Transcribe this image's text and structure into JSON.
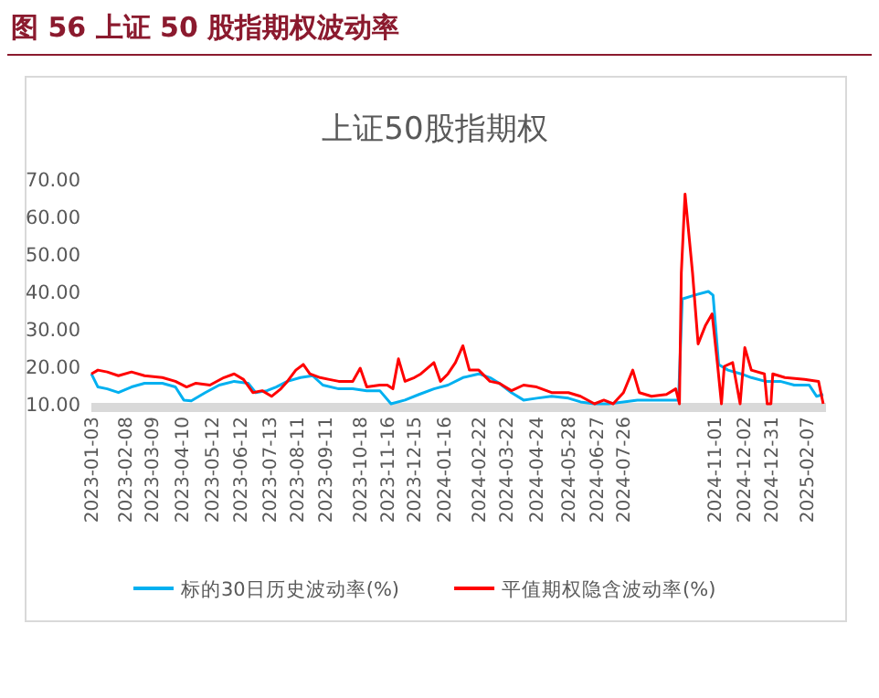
{
  "chart_data": {
    "type": "line",
    "title": "上证50股指期权",
    "annotations": [
      "图 56   上证 50 股指期权波动率"
    ],
    "xlim": [
      "2023-01-03",
      "2025-02-28"
    ],
    "xticks": [
      "2023-01-03",
      "2023-02-08",
      "2023-03-09",
      "2023-04-10",
      "2023-05-12",
      "2023-06-12",
      "2023-07-13",
      "2023-08-11",
      "2023-09-11",
      "2023-10-18",
      "2023-11-16",
      "2023-12-15",
      "2024-01-16",
      "2024-02-22",
      "2024-03-22",
      "2024-04-24",
      "2024-05-28",
      "2024-06-27",
      "2024-07-26",
      "2024-11-01",
      "2024-12-02",
      "2024-12-31",
      "2025-02-07"
    ],
    "ylim": [
      10,
      70
    ],
    "yticks": [
      {
        "value": 10,
        "label": "10.00"
      },
      {
        "value": 20,
        "label": "20.00"
      },
      {
        "value": 30,
        "label": "30.00"
      },
      {
        "value": 40,
        "label": "40.00"
      },
      {
        "value": 50,
        "label": "50.00"
      },
      {
        "value": 60,
        "label": "60.00"
      },
      {
        "value": 70,
        "label": "70.00"
      }
    ],
    "grid": false,
    "legend": "bottom",
    "line_style": "solid",
    "marker": "none",
    "series": [
      {
        "name": "标的30日历史波动率(%)",
        "color": "#00b0f0",
        "x": [
          "2023-01-03",
          "2023-01-10",
          "2023-01-20",
          "2023-02-01",
          "2023-02-15",
          "2023-03-01",
          "2023-03-20",
          "2023-04-03",
          "2023-04-12",
          "2023-04-20",
          "2023-05-05",
          "2023-05-20",
          "2023-06-05",
          "2023-06-20",
          "2023-06-28",
          "2023-07-10",
          "2023-07-20",
          "2023-08-01",
          "2023-08-15",
          "2023-08-28",
          "2023-09-08",
          "2023-09-25",
          "2023-10-10",
          "2023-10-25",
          "2023-11-08",
          "2023-11-20",
          "2023-12-05",
          "2023-12-20",
          "2024-01-05",
          "2024-01-20",
          "2024-02-05",
          "2024-02-22",
          "2024-03-05",
          "2024-03-15",
          "2024-03-28",
          "2024-04-10",
          "2024-04-24",
          "2024-05-10",
          "2024-05-28",
          "2024-06-10",
          "2024-06-25",
          "2024-07-10",
          "2024-07-26",
          "2024-08-10",
          "2024-08-25",
          "2024-09-10",
          "2024-09-23",
          "2024-09-27",
          "2024-10-10",
          "2024-10-25",
          "2024-10-30",
          "2024-11-05",
          "2024-11-15",
          "2024-11-29",
          "2024-12-10",
          "2024-12-25",
          "2025-01-10",
          "2025-01-25",
          "2025-02-10",
          "2025-02-18",
          "2025-02-25"
        ],
        "values": [
          18,
          14.5,
          14,
          13,
          14.5,
          15.5,
          15.5,
          14.5,
          11,
          10.8,
          13,
          15,
          16,
          15.5,
          13,
          13.5,
          14.5,
          16,
          17,
          17.5,
          15,
          14,
          14,
          13.5,
          13.5,
          10,
          11,
          12.5,
          14,
          15,
          17,
          18,
          17,
          15.5,
          13,
          11,
          11.5,
          12,
          11.5,
          10.5,
          10,
          10,
          10.5,
          11,
          11,
          11,
          11,
          38,
          39,
          40,
          39,
          20.5,
          19,
          18,
          17,
          16,
          16,
          15,
          15,
          12,
          12.5
        ]
      },
      {
        "name": "平值期权隐含波动率(%)",
        "color": "#ff0000",
        "x": [
          "2023-01-03",
          "2023-01-10",
          "2023-01-20",
          "2023-02-01",
          "2023-02-15",
          "2023-03-01",
          "2023-03-20",
          "2023-04-03",
          "2023-04-15",
          "2023-04-25",
          "2023-05-10",
          "2023-05-25",
          "2023-06-05",
          "2023-06-15",
          "2023-06-25",
          "2023-07-05",
          "2023-07-15",
          "2023-07-25",
          "2023-08-01",
          "2023-08-10",
          "2023-08-18",
          "2023-08-25",
          "2023-09-05",
          "2023-09-15",
          "2023-09-25",
          "2023-10-10",
          "2023-10-18",
          "2023-10-25",
          "2023-11-08",
          "2023-11-16",
          "2023-11-22",
          "2023-11-28",
          "2023-12-05",
          "2023-12-15",
          "2023-12-22",
          "2024-01-05",
          "2024-01-12",
          "2024-01-20",
          "2024-01-28",
          "2024-02-05",
          "2024-02-12",
          "2024-02-22",
          "2024-03-05",
          "2024-03-15",
          "2024-03-28",
          "2024-04-10",
          "2024-04-24",
          "2024-05-10",
          "2024-05-28",
          "2024-06-10",
          "2024-06-25",
          "2024-07-05",
          "2024-07-15",
          "2024-07-26",
          "2024-08-05",
          "2024-08-12",
          "2024-08-25",
          "2024-09-10",
          "2024-09-20",
          "2024-09-24",
          "2024-09-26",
          "2024-09-30",
          "2024-10-08",
          "2024-10-14",
          "2024-10-22",
          "2024-10-29",
          "2024-11-04",
          "2024-11-08",
          "2024-11-11",
          "2024-11-20",
          "2024-11-28",
          "2024-12-03",
          "2024-12-10",
          "2024-12-24",
          "2024-12-27",
          "2024-12-31",
          "2025-01-02",
          "2025-01-15",
          "2025-02-05",
          "2025-02-20",
          "2025-02-25"
        ],
        "values": [
          18,
          19,
          18.5,
          17.5,
          18.5,
          17.5,
          17,
          16,
          14.5,
          15.5,
          15,
          17,
          18,
          16.5,
          13,
          13.5,
          12,
          14,
          16,
          19,
          20.5,
          18,
          17,
          16.5,
          16,
          16,
          19.5,
          14.5,
          15,
          15,
          14,
          22,
          16,
          17,
          18,
          21,
          16,
          18,
          21,
          25.5,
          19,
          19,
          16,
          15.5,
          13.5,
          15,
          14.5,
          13,
          13,
          12,
          10,
          11,
          10,
          13,
          19,
          13,
          12,
          12.5,
          14,
          10,
          45,
          66,
          45,
          26,
          31,
          34,
          20,
          10,
          20,
          21,
          10,
          25,
          19,
          18,
          10,
          10,
          18,
          17,
          16.5,
          16,
          10
        ]
      }
    ]
  }
}
